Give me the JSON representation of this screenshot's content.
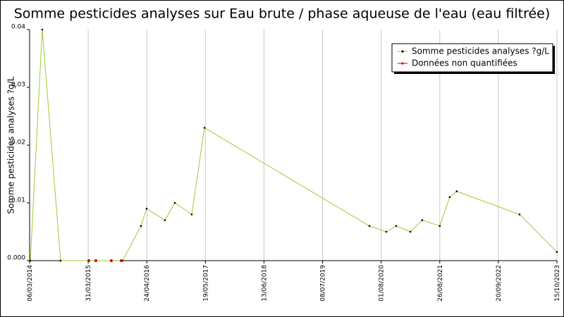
{
  "chart_data": {
    "type": "line",
    "title": "Somme pesticides analyses sur Eau brute / phase aqueuse de l'eau (eau filtrée)",
    "y_label": "Somme pesticides analyses ?g/L",
    "xlim": [
      "06/03/2014",
      "15/10/2023"
    ],
    "xticks": [
      "06/03/2014",
      "31/03/2015",
      "24/04/2016",
      "19/05/2017",
      "13/06/2018",
      "08/07/2019",
      "01/08/2020",
      "26/08/2021",
      "20/09/2022",
      "15/10/2023"
    ],
    "ylim": [
      0,
      0.04
    ],
    "yticks": [
      {
        "value": 0,
        "label": "0.000"
      },
      0.01,
      0.02,
      0.03,
      0.04
    ],
    "grid": true,
    "legend": "upper right",
    "series": [
      {
        "name": "Somme pesticides analyses ?g/L",
        "color": "#99cc33",
        "marker_color": "#000000",
        "line": true,
        "x": [
          "11/03/2014",
          "29/05/2014",
          "28/09/2014",
          "15/11/2015",
          "16/03/2016",
          "23/04/2016",
          "23/08/2016",
          "28/10/2016",
          "17/02/2017",
          "13/05/2017",
          "15/05/2020",
          "04/09/2020",
          "09/11/2020",
          "11/02/2021",
          "01/05/2021",
          "26/08/2021",
          "31/10/2021",
          "17/12/2021",
          "08/02/2023",
          "15/10/2023"
        ],
        "values": [
          0,
          0.04,
          0,
          0,
          0.006,
          0.009,
          0.007,
          0.01,
          0.008,
          0.023,
          0.006,
          0.005,
          0.006,
          0.005,
          0.007,
          0.006,
          0.011,
          0.012,
          0.008,
          0.0015
        ]
      },
      {
        "name": "Données non quantifiées",
        "color": "#cc0000",
        "marker_color": "#cc0000",
        "line": false,
        "x": [
          "04/04/2015",
          "21/05/2015",
          "01/09/2015",
          "06/11/2015"
        ],
        "values": [
          0,
          0,
          0,
          0
        ]
      }
    ]
  }
}
